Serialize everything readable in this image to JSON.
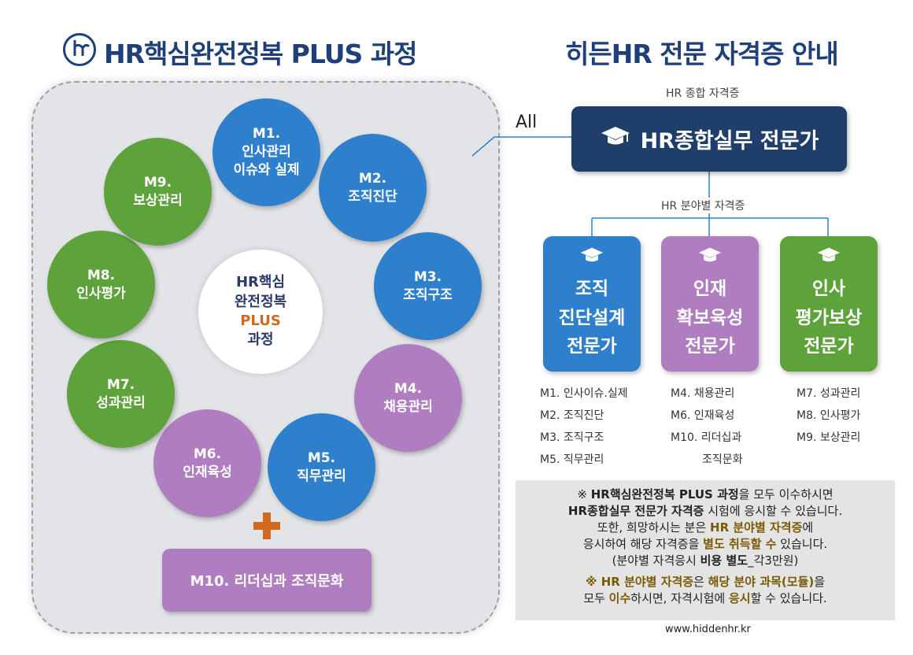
{
  "left_title": "HR핵심완전정복 PLUS 과정",
  "right_title": "히든HR 전문 자격증 안내",
  "center": {
    "line1": "HR핵심",
    "line2": "완전정복",
    "line3": "PLUS",
    "line4": "과정"
  },
  "modules": [
    {
      "label": "M1.\n인사관리\n이슈와 실제",
      "color": "blue"
    },
    {
      "label": "M2.\n조직진단",
      "color": "blue"
    },
    {
      "label": "M3.\n조직구조",
      "color": "blue"
    },
    {
      "label": "M4.\n채용관리",
      "color": "purple"
    },
    {
      "label": "M5.\n직무관리",
      "color": "blue"
    },
    {
      "label": "M6.\n인재육성",
      "color": "purple"
    },
    {
      "label": "M7.\n성과관리",
      "color": "green"
    },
    {
      "label": "M8.\n인사평가",
      "color": "green"
    },
    {
      "label": "M9.\n보상관리",
      "color": "green"
    }
  ],
  "m10": "M10. 리더십과 조직문화",
  "all_label": "All",
  "general_cert_label": "HR 종합 자격증",
  "general_cert": "HR종합실무 전문가",
  "field_cert_label": "HR 분야별 자격증",
  "certs": [
    {
      "name": "조직\n진단설계\n전문가",
      "color": "#2e80cd",
      "modules": "M1. 인사이슈.실제\nM2. 조직진단\nM3. 조직구조\nM5. 직무관리"
    },
    {
      "name": "인재\n확보육성\n전문가",
      "color": "#b07ec0",
      "modules": "M4. 채용관리\nM6. 인재육성\nM10. 리더십과\n         조직문화"
    },
    {
      "name": "인사\n평가보상\n전문가",
      "color": "#5da23a",
      "modules": "M7. 성과관리\nM8. 인사평가\nM9. 보상관리"
    }
  ],
  "note": {
    "l1a": "※ ",
    "l1b": "HR핵심완전정복 PLUS 과정",
    "l1c": "을 모두 이수하시면",
    "l2a": "HR종합실무 전문가 자격증",
    "l2b": " 시험에 응시할 수 있습니다.",
    "l3a": "또한, 희망하시는 분은 ",
    "l3b": "HR 분야별 자격증",
    "l3c": "에",
    "l4a": "응시하여 해당 자격증을 ",
    "l4b": "별도 취득할 수",
    "l4c": " 있습니다.",
    "l5a": "(분야별 자격응시 ",
    "l5b": "비용 별도",
    "l5c": "_각3만원)",
    "l6a": "※ HR 분야별 자격증",
    "l6b": "은 ",
    "l6c": "해당 분야 과목(모듈)",
    "l6d": "을",
    "l7a": "모두 ",
    "l7b": "이수",
    "l7c": "하시면, 자격시험에 ",
    "l7d": "응시",
    "l7e": "할 수 있습니다."
  },
  "website": "www.hiddenhr.kr"
}
